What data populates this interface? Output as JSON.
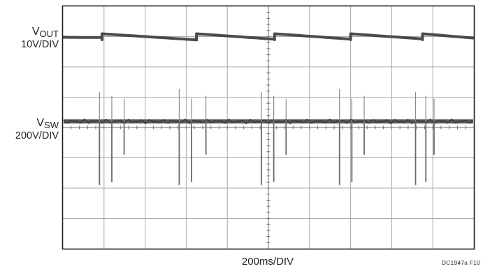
{
  "chart_data": {
    "type": "line",
    "title": "",
    "xlabel": "200ms/DIV",
    "x_divisions": 10,
    "y_divisions": 8,
    "grid": true,
    "figure_id": "DC1947a F10",
    "traces": [
      {
        "name": "V",
        "name_sub": "OUT",
        "scale": "10V/DIV",
        "baseline_div_from_top": 1.0,
        "shape": "sawtooth",
        "jump_x_div": [
          0.95,
          3.25,
          5.15,
          7.0,
          8.75
        ],
        "stroke_color": "#4a4a4a"
      },
      {
        "name": "V",
        "name_sub": "SW",
        "scale": "200V/DIV",
        "baseline_div_from_top": 3.8,
        "shape": "flat with switching spikes",
        "spike_x_div": [
          0.89,
          1.19,
          1.49,
          2.83,
          3.13,
          3.48,
          4.83,
          5.13,
          5.43,
          6.73,
          7.03,
          7.33,
          8.58,
          8.83,
          9.03
        ],
        "stroke_color": "#5a5a5a"
      }
    ],
    "frame_color": "#231f20",
    "grid_color": "#a7a9ac"
  }
}
